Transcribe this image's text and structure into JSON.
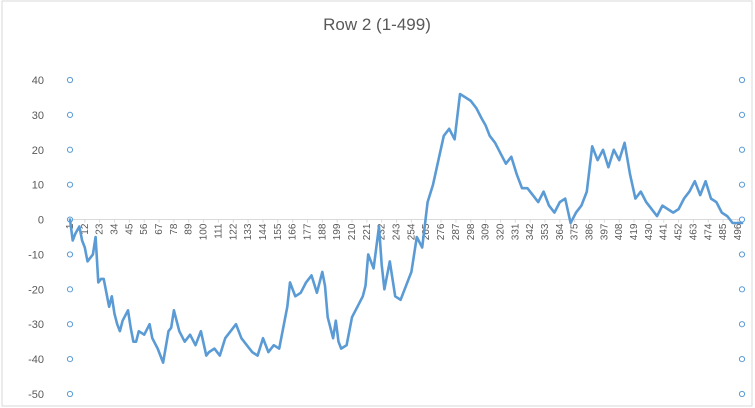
{
  "chart_data": {
    "type": "line",
    "title": "Row 2 (1-499)",
    "xlabel": "",
    "ylabel": "",
    "ylim": [
      -50,
      40
    ],
    "yticks": [
      40,
      30,
      20,
      10,
      0,
      -10,
      -20,
      -30,
      -40,
      -50
    ],
    "xlim": [
      1,
      499
    ],
    "xticks": [
      1,
      12,
      23,
      34,
      45,
      56,
      67,
      78,
      89,
      100,
      111,
      122,
      133,
      144,
      155,
      166,
      177,
      188,
      199,
      210,
      221,
      232,
      243,
      254,
      265,
      276,
      287,
      298,
      309,
      320,
      331,
      342,
      353,
      364,
      375,
      386,
      397,
      408,
      419,
      430,
      441,
      452,
      463,
      474,
      485,
      496
    ],
    "grid": false,
    "legend": "none",
    "line_color": "#5B9BD5",
    "series": [
      {
        "x": [
          1,
          3,
          5,
          8,
          10,
          12,
          14,
          18,
          20,
          22,
          24,
          26,
          30,
          32,
          34,
          36,
          38,
          40,
          44,
          46,
          48,
          50,
          52,
          56,
          60,
          62,
          66,
          70,
          74,
          76,
          78,
          82,
          86,
          90,
          94,
          98,
          102,
          104,
          108,
          112,
          116,
          120,
          124,
          128,
          132,
          136,
          140,
          144,
          148,
          152,
          156,
          160,
          162,
          164,
          168,
          172,
          176,
          180,
          184,
          188,
          190,
          192,
          196,
          198,
          200,
          202,
          206,
          210,
          214,
          218,
          220,
          222,
          226,
          230,
          232,
          234,
          238,
          242,
          246,
          250,
          254,
          258,
          262,
          266,
          270,
          274,
          278,
          282,
          286,
          290,
          294,
          298,
          302,
          306,
          309,
          312,
          316,
          320,
          324,
          328,
          332,
          336,
          340,
          344,
          348,
          352,
          356,
          360,
          364,
          368,
          372,
          376,
          380,
          384,
          388,
          392,
          396,
          400,
          404,
          408,
          412,
          416,
          420,
          424,
          428,
          432,
          436,
          440,
          444,
          448,
          452,
          456,
          460,
          464,
          468,
          472,
          476,
          480,
          484,
          488,
          492,
          496,
          499
        ],
        "y": [
          0,
          -6,
          -4,
          -2,
          -6,
          -8,
          -12,
          -10,
          -5,
          -18,
          -17,
          -17,
          -25,
          -22,
          -27,
          -30,
          -32,
          -29,
          -26,
          -31,
          -35,
          -35,
          -32,
          -33,
          -30,
          -34,
          -37,
          -41,
          -32,
          -31,
          -26,
          -32,
          -35,
          -33,
          -36,
          -32,
          -39,
          -38,
          -37,
          -39,
          -34,
          -32,
          -30,
          -34,
          -36,
          -38,
          -39,
          -34,
          -38,
          -36,
          -37,
          -29,
          -25,
          -18,
          -22,
          -21,
          -18,
          -16,
          -21,
          -15,
          -19,
          -28,
          -34,
          -29,
          -35,
          -37,
          -36,
          -28,
          -25,
          -22,
          -19,
          -10,
          -14,
          -2,
          -13,
          -20,
          -12,
          -22,
          -23,
          -19,
          -15,
          -5,
          -8,
          5,
          10,
          17,
          24,
          26,
          23,
          36,
          35,
          34,
          32,
          29,
          27,
          24,
          22,
          19,
          16,
          18,
          13,
          9,
          9,
          7,
          5,
          8,
          4,
          2,
          5,
          6,
          -1,
          2,
          4,
          8,
          21,
          17,
          20,
          15,
          20,
          17,
          22,
          13,
          6,
          8,
          5,
          3,
          1,
          4,
          3,
          2,
          3,
          6,
          8,
          11,
          7,
          11,
          6,
          5,
          2,
          1,
          -1,
          -1,
          -1
        ]
      }
    ]
  }
}
